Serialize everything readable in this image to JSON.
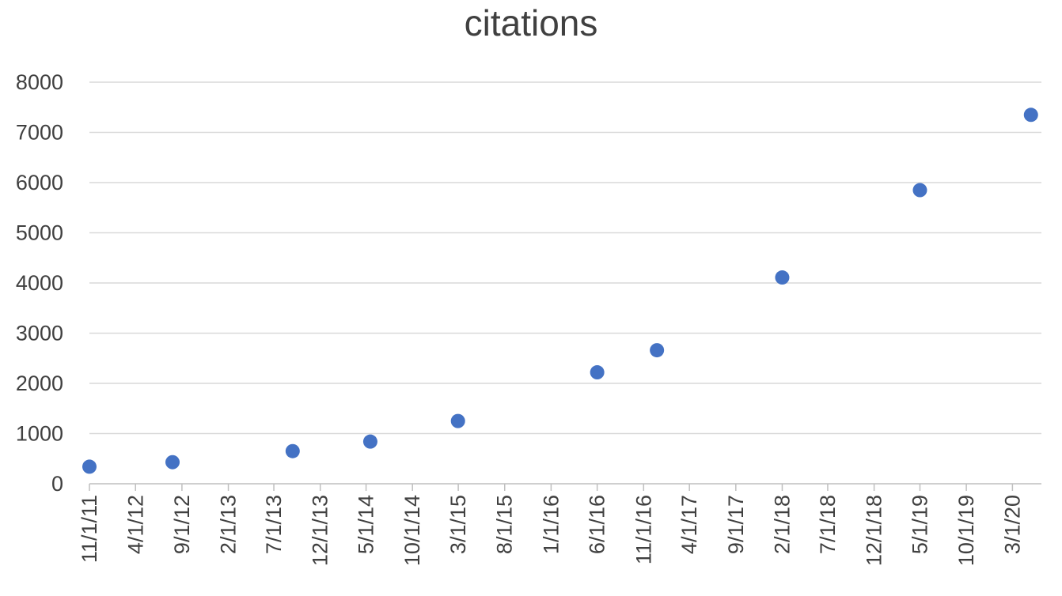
{
  "chart_data": {
    "type": "scatter",
    "title": "citations",
    "xlabel": "",
    "ylabel": "",
    "x_axis_type": "date",
    "xlim": [
      "2011-11-01",
      "2020-05-31"
    ],
    "ylim": [
      0,
      8000
    ],
    "y_ticks": [
      0,
      1000,
      2000,
      3000,
      4000,
      5000,
      6000,
      7000,
      8000
    ],
    "x_tick_labels": [
      "11/1/11",
      "4/1/12",
      "9/1/12",
      "2/1/13",
      "7/1/13",
      "12/1/13",
      "5/1/14",
      "10/1/14",
      "3/1/15",
      "8/1/15",
      "1/1/16",
      "6/1/16",
      "11/1/16",
      "4/1/17",
      "9/1/17",
      "2/1/18",
      "7/1/18",
      "12/1/18",
      "5/1/19",
      "10/1/19",
      "3/1/20"
    ],
    "grid": true,
    "legend": "none",
    "series": [
      {
        "color": "#4472c4",
        "points": [
          {
            "x": "2011-11-01",
            "y": 340
          },
          {
            "x": "2012-08-01",
            "y": 430
          },
          {
            "x": "2013-09-01",
            "y": 650
          },
          {
            "x": "2014-05-15",
            "y": 840
          },
          {
            "x": "2015-02-28",
            "y": 1250
          },
          {
            "x": "2016-06-01",
            "y": 2220
          },
          {
            "x": "2016-12-15",
            "y": 2660
          },
          {
            "x": "2018-02-01",
            "y": 4110
          },
          {
            "x": "2019-05-01",
            "y": 5850
          },
          {
            "x": "2020-05-01",
            "y": 7350
          }
        ]
      }
    ]
  }
}
